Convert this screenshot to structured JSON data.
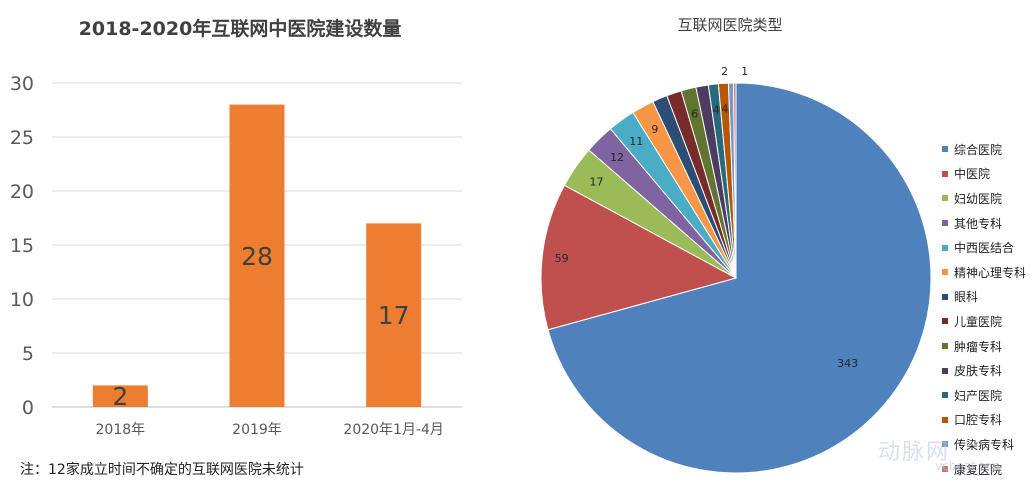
{
  "chart_data": [
    {
      "type": "bar",
      "title": "2018-2020年互联网中医院建设数量",
      "categories": [
        "2018年",
        "2019年",
        "2020年1月-4月"
      ],
      "values": [
        2,
        28,
        17
      ],
      "ylim": [
        0,
        30
      ],
      "yticks": [
        0,
        5,
        10,
        15,
        20,
        25,
        30
      ],
      "bar_color": "#ED7D31",
      "grid": true,
      "note": "注：12家成立时间不确定的互联网医院未统计"
    },
    {
      "type": "pie",
      "title": "互联网医院类型",
      "legend_position": "right",
      "labels": [
        "综合医院",
        "中医院",
        "妇幼医院",
        "其他专科",
        "中西医结合",
        "精神心理专科",
        "眼科",
        "儿童医院",
        "肿瘤专科",
        "皮肤专科",
        "妇产医院",
        "口腔专科",
        "传染病专科",
        "康复医院"
      ],
      "values": [
        343,
        59,
        17,
        12,
        11,
        9,
        6,
        6,
        6,
        5,
        4,
        4,
        2,
        1
      ],
      "value_labels": [
        "343",
        "59",
        "17",
        "12",
        "11",
        "9",
        "",
        "",
        "6",
        "",
        "4",
        "4",
        "2",
        "1"
      ],
      "colors": [
        "#4F81BD",
        "#C0504D",
        "#9BBB59",
        "#8064A2",
        "#4BACC6",
        "#F79646",
        "#2C4D75",
        "#772C2A",
        "#5F7530",
        "#4D3B62",
        "#276A7C",
        "#B65708",
        "#729ACA",
        "#CD7371"
      ]
    }
  ],
  "watermark": {
    "text": "动脉网",
    "sub": "vcbeat.top"
  }
}
